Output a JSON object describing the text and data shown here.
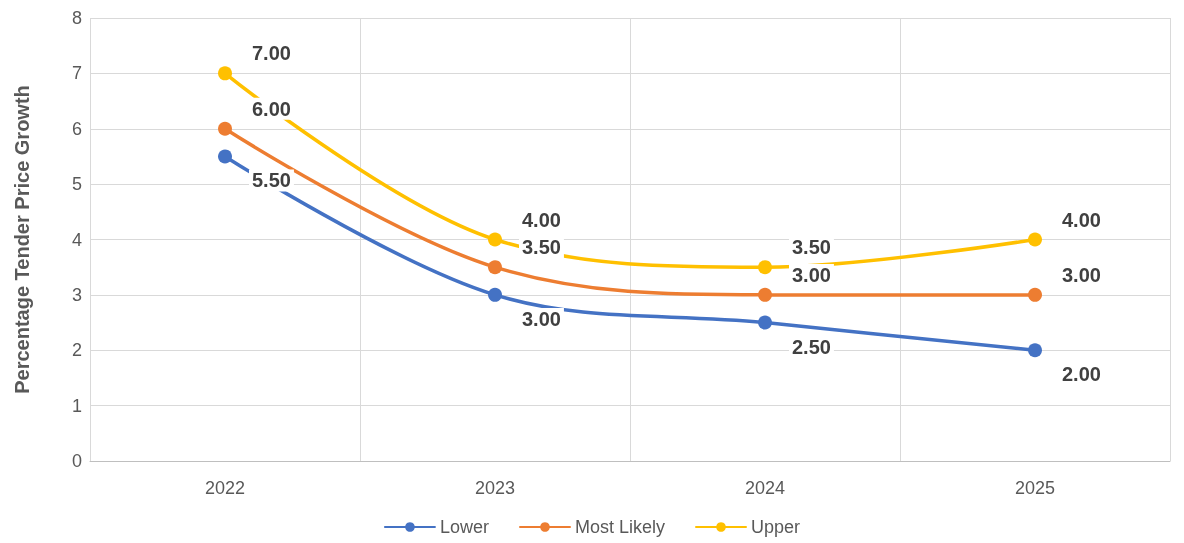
{
  "chart_data": {
    "type": "line",
    "ylabel": "Percentage Tender Price Growth",
    "categories": [
      "2022",
      "2023",
      "2024",
      "2025"
    ],
    "series": [
      {
        "name": "Lower",
        "color": "#4472c4",
        "values": [
          5.5,
          3,
          2.5,
          2
        ],
        "value_labels": [
          "5.50",
          "3.00",
          "2.50",
          "2.00"
        ]
      },
      {
        "name": "Most Likely",
        "color": "#ed7d31",
        "values": [
          6,
          3.5,
          3,
          3
        ],
        "value_labels": [
          "6.00",
          "3.50",
          "3.00",
          "3.00"
        ]
      },
      {
        "name": "Upper",
        "color": "#ffc000",
        "values": [
          7,
          4,
          3.5,
          4
        ],
        "value_labels": [
          "7.00",
          "4.00",
          "3.50",
          "4.00"
        ]
      }
    ],
    "ylim": [
      0,
      8
    ],
    "yticks": [
      0,
      1,
      2,
      3,
      4,
      5,
      6,
      7,
      8
    ],
    "grid": true,
    "legend": "bottom",
    "marker": "circle",
    "line_style": "solid"
  }
}
